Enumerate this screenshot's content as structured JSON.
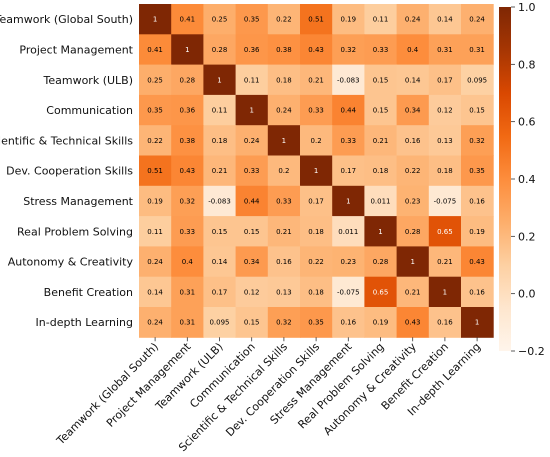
{
  "chart_data": {
    "type": "heatmap",
    "title": "",
    "xlabel": "",
    "ylabel": "",
    "row_labels": [
      "Teamwork (Global South)",
      "Project Management",
      "Teamwork (ULB)",
      "Communication",
      "Scientific & Technical Skills",
      "Dev. Cooperation Skills",
      "Stress Management",
      "Real Problem Solving",
      "Autonomy & Creativity",
      "Benefit Creation",
      "In-depth Learning"
    ],
    "col_labels": [
      "Teamwork (Global South)",
      "Project Management",
      "Teamwork (ULB)",
      "Communication",
      "Scientific & Technical Skills",
      "Dev. Cooperation Skills",
      "Stress Management",
      "Real Problem Solving",
      "Autonomy & Creativity",
      "Benefit Creation",
      "In-depth Learning"
    ],
    "values": [
      [
        "1",
        "0.41",
        "0.25",
        "0.35",
        "0.22",
        "0.51",
        "0.19",
        "0.11",
        "0.24",
        "0.14",
        "0.24"
      ],
      [
        "0.41",
        "1",
        "0.28",
        "0.36",
        "0.38",
        "0.43",
        "0.32",
        "0.33",
        "0.4",
        "0.31",
        "0.31"
      ],
      [
        "0.25",
        "0.28",
        "1",
        "0.11",
        "0.18",
        "0.21",
        "-0.083",
        "0.15",
        "0.14",
        "0.17",
        "0.095"
      ],
      [
        "0.35",
        "0.36",
        "0.11",
        "1",
        "0.24",
        "0.33",
        "0.44",
        "0.15",
        "0.34",
        "0.12",
        "0.15"
      ],
      [
        "0.22",
        "0.38",
        "0.18",
        "0.24",
        "1",
        "0.2",
        "0.33",
        "0.21",
        "0.16",
        "0.13",
        "0.32"
      ],
      [
        "0.51",
        "0.43",
        "0.21",
        "0.33",
        "0.2",
        "1",
        "0.17",
        "0.18",
        "0.22",
        "0.18",
        "0.35"
      ],
      [
        "0.19",
        "0.32",
        "-0.083",
        "0.44",
        "0.33",
        "0.17",
        "1",
        "0.011",
        "0.23",
        "-0.075",
        "0.16"
      ],
      [
        "0.11",
        "0.33",
        "0.15",
        "0.15",
        "0.21",
        "0.18",
        "0.011",
        "1",
        "0.28",
        "0.65",
        "0.19"
      ],
      [
        "0.24",
        "0.4",
        "0.14",
        "0.34",
        "0.16",
        "0.22",
        "0.23",
        "0.28",
        "1",
        "0.21",
        "0.43"
      ],
      [
        "0.14",
        "0.31",
        "0.17",
        "0.12",
        "0.13",
        "0.18",
        "-0.075",
        "0.65",
        "0.21",
        "1",
        "0.16"
      ],
      [
        "0.24",
        "0.31",
        "0.095",
        "0.15",
        "0.32",
        "0.35",
        "0.16",
        "0.19",
        "0.43",
        "0.16",
        "1"
      ]
    ],
    "vmin": -0.2,
    "vmax": 1.0,
    "colorbar_ticks": [
      "1.0",
      "0.8",
      "0.6",
      "0.4",
      "0.2",
      "0.0",
      "−0.2"
    ],
    "colormap": [
      "#fff5eb",
      "#fee6ce",
      "#fdd0a2",
      "#fdae6b",
      "#fd8d3c",
      "#f16913",
      "#d94801",
      "#a63603",
      "#7f2704"
    ]
  }
}
